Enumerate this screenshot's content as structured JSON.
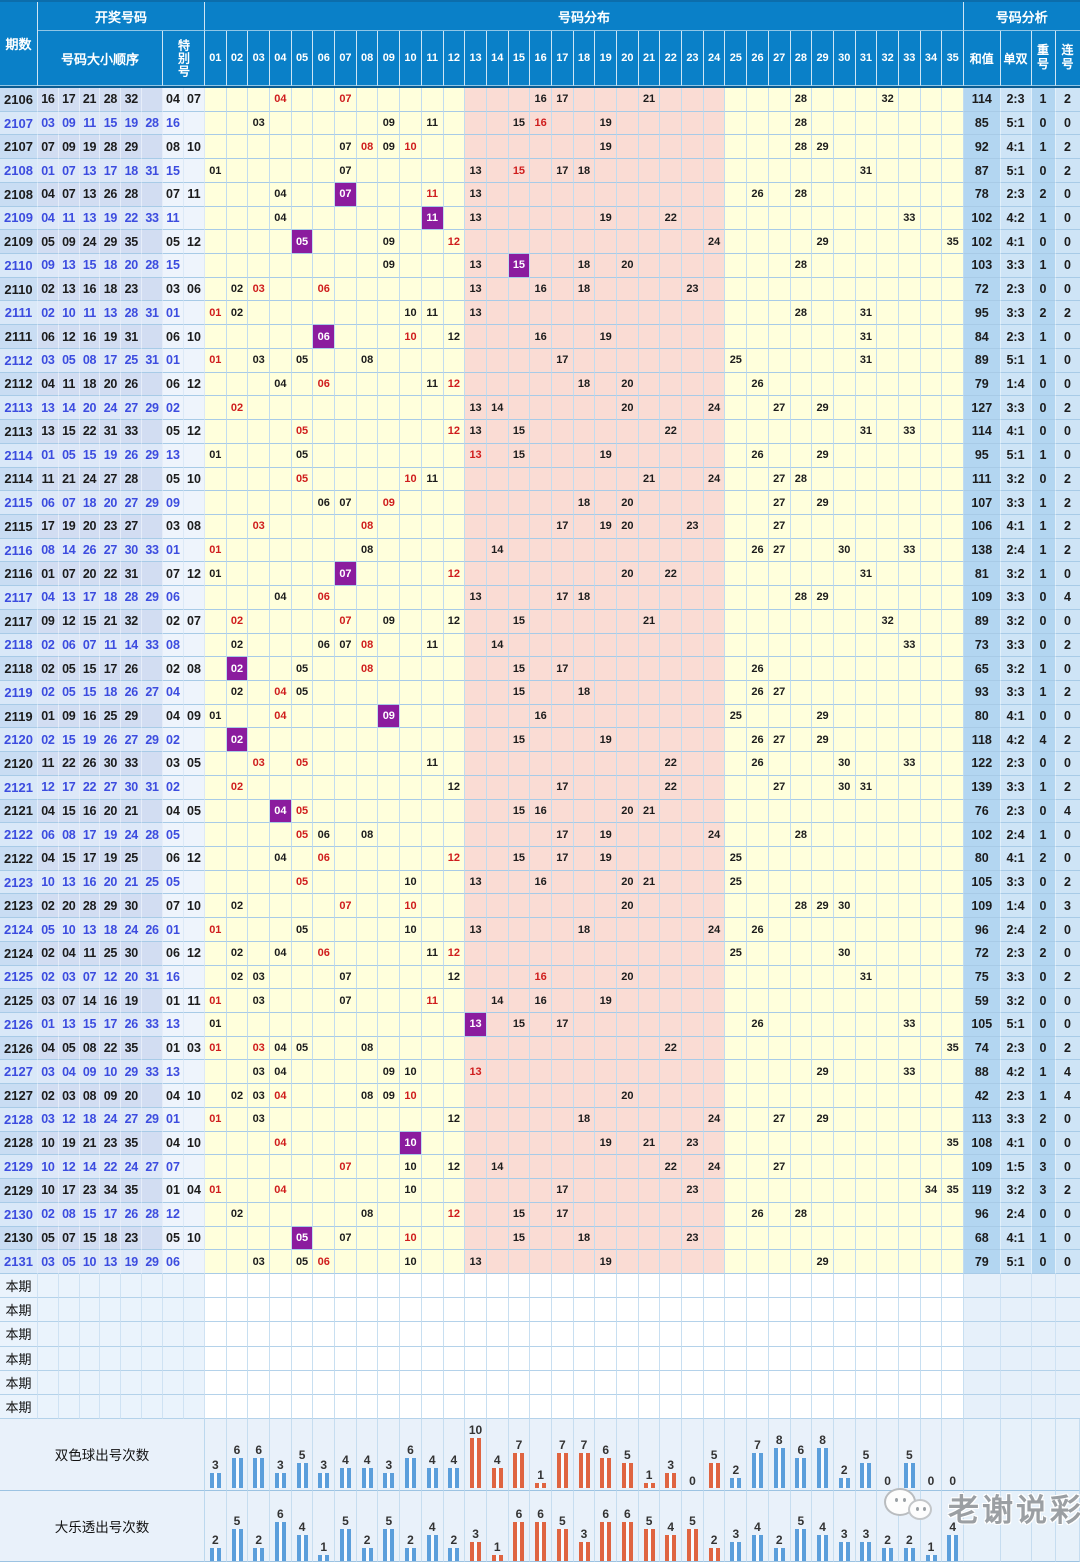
{
  "header": {
    "col_period": "期数",
    "col_draw": "开奖号码",
    "col_order": "号码大小顺序",
    "col_special": "特别号",
    "col_dist": "号码分布",
    "col_analysis": "号码分析",
    "col_sum": "和值",
    "col_oddeven": "单双",
    "col_repeat": "重号",
    "col_consec": "连号",
    "dist_columns": [
      "01",
      "02",
      "03",
      "04",
      "05",
      "06",
      "07",
      "08",
      "09",
      "10",
      "11",
      "12",
      "13",
      "14",
      "15",
      "16",
      "17",
      "18",
      "19",
      "20",
      "21",
      "22",
      "23",
      "24",
      "25",
      "26",
      "27",
      "28",
      "29",
      "30",
      "31",
      "32",
      "33",
      "34",
      "35"
    ]
  },
  "rows": [
    {
      "period": "2106",
      "lottery": "dlt",
      "balls": [
        "16",
        "17",
        "21",
        "28",
        "32"
      ],
      "specials": [
        "04",
        "07"
      ],
      "sum": "114",
      "odd_even": "2:3",
      "repeat": "1",
      "consec": "2"
    },
    {
      "period": "2107",
      "lottery": "ssq",
      "balls": [
        "03",
        "09",
        "11",
        "15",
        "19",
        "28"
      ],
      "specials": [
        "16"
      ],
      "sum": "85",
      "odd_even": "5:1",
      "repeat": "0",
      "consec": "0"
    },
    {
      "period": "2107",
      "lottery": "dlt",
      "balls": [
        "07",
        "09",
        "19",
        "28",
        "29"
      ],
      "specials": [
        "08",
        "10"
      ],
      "sum": "92",
      "odd_even": "4:1",
      "repeat": "1",
      "consec": "2"
    },
    {
      "period": "2108",
      "lottery": "ssq",
      "balls": [
        "01",
        "07",
        "13",
        "17",
        "18",
        "31"
      ],
      "specials": [
        "15"
      ],
      "sum": "87",
      "odd_even": "5:1",
      "repeat": "0",
      "consec": "2"
    },
    {
      "period": "2108",
      "lottery": "dlt",
      "balls": [
        "04",
        "07",
        "13",
        "26",
        "28"
      ],
      "specials": [
        "07",
        "11"
      ],
      "sum": "78",
      "odd_even": "2:3",
      "repeat": "2",
      "consec": "0"
    },
    {
      "period": "2109",
      "lottery": "ssq",
      "balls": [
        "04",
        "11",
        "13",
        "19",
        "22",
        "33"
      ],
      "specials": [
        "11"
      ],
      "sum": "102",
      "odd_even": "4:2",
      "repeat": "1",
      "consec": "0"
    },
    {
      "period": "2109",
      "lottery": "dlt",
      "balls": [
        "05",
        "09",
        "24",
        "29",
        "35"
      ],
      "specials": [
        "05",
        "12"
      ],
      "sum": "102",
      "odd_even": "4:1",
      "repeat": "0",
      "consec": "0"
    },
    {
      "period": "2110",
      "lottery": "ssq",
      "balls": [
        "09",
        "13",
        "15",
        "18",
        "20",
        "28"
      ],
      "specials": [
        "15"
      ],
      "sum": "103",
      "odd_even": "3:3",
      "repeat": "1",
      "consec": "0"
    },
    {
      "period": "2110",
      "lottery": "dlt",
      "balls": [
        "02",
        "13",
        "16",
        "18",
        "23"
      ],
      "specials": [
        "03",
        "06"
      ],
      "sum": "72",
      "odd_even": "2:3",
      "repeat": "0",
      "consec": "0"
    },
    {
      "period": "2111",
      "lottery": "ssq",
      "balls": [
        "02",
        "10",
        "11",
        "13",
        "28",
        "31"
      ],
      "specials": [
        "01"
      ],
      "sum": "95",
      "odd_even": "3:3",
      "repeat": "2",
      "consec": "2"
    },
    {
      "period": "2111",
      "lottery": "dlt",
      "balls": [
        "06",
        "12",
        "16",
        "19",
        "31"
      ],
      "specials": [
        "06",
        "10"
      ],
      "sum": "84",
      "odd_even": "2:3",
      "repeat": "1",
      "consec": "0"
    },
    {
      "period": "2112",
      "lottery": "ssq",
      "balls": [
        "03",
        "05",
        "08",
        "17",
        "25",
        "31"
      ],
      "specials": [
        "01"
      ],
      "sum": "89",
      "odd_even": "5:1",
      "repeat": "1",
      "consec": "0"
    },
    {
      "period": "2112",
      "lottery": "dlt",
      "balls": [
        "04",
        "11",
        "18",
        "20",
        "26"
      ],
      "specials": [
        "06",
        "12"
      ],
      "sum": "79",
      "odd_even": "1:4",
      "repeat": "0",
      "consec": "0"
    },
    {
      "period": "2113",
      "lottery": "ssq",
      "balls": [
        "13",
        "14",
        "20",
        "24",
        "27",
        "29"
      ],
      "specials": [
        "02"
      ],
      "sum": "127",
      "odd_even": "3:3",
      "repeat": "0",
      "consec": "2"
    },
    {
      "period": "2113",
      "lottery": "dlt",
      "balls": [
        "13",
        "15",
        "22",
        "31",
        "33"
      ],
      "specials": [
        "05",
        "12"
      ],
      "sum": "114",
      "odd_even": "4:1",
      "repeat": "0",
      "consec": "0"
    },
    {
      "period": "2114",
      "lottery": "ssq",
      "balls": [
        "01",
        "05",
        "15",
        "19",
        "26",
        "29"
      ],
      "specials": [
        "13"
      ],
      "sum": "95",
      "odd_even": "5:1",
      "repeat": "1",
      "consec": "0"
    },
    {
      "period": "2114",
      "lottery": "dlt",
      "balls": [
        "11",
        "21",
        "24",
        "27",
        "28"
      ],
      "specials": [
        "05",
        "10"
      ],
      "sum": "111",
      "odd_even": "3:2",
      "repeat": "0",
      "consec": "2"
    },
    {
      "period": "2115",
      "lottery": "ssq",
      "balls": [
        "06",
        "07",
        "18",
        "20",
        "27",
        "29"
      ],
      "specials": [
        "09"
      ],
      "sum": "107",
      "odd_even": "3:3",
      "repeat": "1",
      "consec": "2"
    },
    {
      "period": "2115",
      "lottery": "dlt",
      "balls": [
        "17",
        "19",
        "20",
        "23",
        "27"
      ],
      "specials": [
        "03",
        "08"
      ],
      "sum": "106",
      "odd_even": "4:1",
      "repeat": "1",
      "consec": "2"
    },
    {
      "period": "2116",
      "lottery": "ssq",
      "balls": [
        "08",
        "14",
        "26",
        "27",
        "30",
        "33"
      ],
      "specials": [
        "01"
      ],
      "sum": "138",
      "odd_even": "2:4",
      "repeat": "1",
      "consec": "2"
    },
    {
      "period": "2116",
      "lottery": "dlt",
      "balls": [
        "01",
        "07",
        "20",
        "22",
        "31"
      ],
      "specials": [
        "07",
        "12"
      ],
      "sum": "81",
      "odd_even": "3:2",
      "repeat": "1",
      "consec": "0"
    },
    {
      "period": "2117",
      "lottery": "ssq",
      "balls": [
        "04",
        "13",
        "17",
        "18",
        "28",
        "29"
      ],
      "specials": [
        "06"
      ],
      "sum": "109",
      "odd_even": "3:3",
      "repeat": "0",
      "consec": "4"
    },
    {
      "period": "2117",
      "lottery": "dlt",
      "balls": [
        "09",
        "12",
        "15",
        "21",
        "32"
      ],
      "specials": [
        "02",
        "07"
      ],
      "sum": "89",
      "odd_even": "3:2",
      "repeat": "0",
      "consec": "0"
    },
    {
      "period": "2118",
      "lottery": "ssq",
      "balls": [
        "02",
        "06",
        "07",
        "11",
        "14",
        "33"
      ],
      "specials": [
        "08"
      ],
      "sum": "73",
      "odd_even": "3:3",
      "repeat": "0",
      "consec": "2"
    },
    {
      "period": "2118",
      "lottery": "dlt",
      "balls": [
        "02",
        "05",
        "15",
        "17",
        "26"
      ],
      "specials": [
        "02",
        "08"
      ],
      "sum": "65",
      "odd_even": "3:2",
      "repeat": "1",
      "consec": "0"
    },
    {
      "period": "2119",
      "lottery": "ssq",
      "balls": [
        "02",
        "05",
        "15",
        "18",
        "26",
        "27"
      ],
      "specials": [
        "04"
      ],
      "sum": "93",
      "odd_even": "3:3",
      "repeat": "1",
      "consec": "2"
    },
    {
      "period": "2119",
      "lottery": "dlt",
      "balls": [
        "01",
        "09",
        "16",
        "25",
        "29"
      ],
      "specials": [
        "04",
        "09"
      ],
      "sum": "80",
      "odd_even": "4:1",
      "repeat": "0",
      "consec": "0"
    },
    {
      "period": "2120",
      "lottery": "ssq",
      "balls": [
        "02",
        "15",
        "19",
        "26",
        "27",
        "29"
      ],
      "specials": [
        "02"
      ],
      "sum": "118",
      "odd_even": "4:2",
      "repeat": "4",
      "consec": "2"
    },
    {
      "period": "2120",
      "lottery": "dlt",
      "balls": [
        "11",
        "22",
        "26",
        "30",
        "33"
      ],
      "specials": [
        "03",
        "05"
      ],
      "sum": "122",
      "odd_even": "2:3",
      "repeat": "0",
      "consec": "0"
    },
    {
      "period": "2121",
      "lottery": "ssq",
      "balls": [
        "12",
        "17",
        "22",
        "27",
        "30",
        "31"
      ],
      "specials": [
        "02"
      ],
      "sum": "139",
      "odd_even": "3:3",
      "repeat": "1",
      "consec": "2"
    },
    {
      "period": "2121",
      "lottery": "dlt",
      "balls": [
        "04",
        "15",
        "16",
        "20",
        "21"
      ],
      "specials": [
        "04",
        "05"
      ],
      "sum": "76",
      "odd_even": "2:3",
      "repeat": "0",
      "consec": "4"
    },
    {
      "period": "2122",
      "lottery": "ssq",
      "balls": [
        "06",
        "08",
        "17",
        "19",
        "24",
        "28"
      ],
      "specials": [
        "05"
      ],
      "sum": "102",
      "odd_even": "2:4",
      "repeat": "1",
      "consec": "0"
    },
    {
      "period": "2122",
      "lottery": "dlt",
      "balls": [
        "04",
        "15",
        "17",
        "19",
        "25"
      ],
      "specials": [
        "06",
        "12"
      ],
      "sum": "80",
      "odd_even": "4:1",
      "repeat": "2",
      "consec": "0"
    },
    {
      "period": "2123",
      "lottery": "ssq",
      "balls": [
        "10",
        "13",
        "16",
        "20",
        "21",
        "25"
      ],
      "specials": [
        "05"
      ],
      "sum": "105",
      "odd_even": "3:3",
      "repeat": "0",
      "consec": "2"
    },
    {
      "period": "2123",
      "lottery": "dlt",
      "balls": [
        "02",
        "20",
        "28",
        "29",
        "30"
      ],
      "specials": [
        "07",
        "10"
      ],
      "sum": "109",
      "odd_even": "1:4",
      "repeat": "0",
      "consec": "3"
    },
    {
      "period": "2124",
      "lottery": "ssq",
      "balls": [
        "05",
        "10",
        "13",
        "18",
        "24",
        "26"
      ],
      "specials": [
        "01"
      ],
      "sum": "96",
      "odd_even": "2:4",
      "repeat": "2",
      "consec": "0"
    },
    {
      "period": "2124",
      "lottery": "dlt",
      "balls": [
        "02",
        "04",
        "11",
        "25",
        "30"
      ],
      "specials": [
        "06",
        "12"
      ],
      "sum": "72",
      "odd_even": "2:3",
      "repeat": "2",
      "consec": "0"
    },
    {
      "period": "2125",
      "lottery": "ssq",
      "balls": [
        "02",
        "03",
        "07",
        "12",
        "20",
        "31"
      ],
      "specials": [
        "16"
      ],
      "sum": "75",
      "odd_even": "3:3",
      "repeat": "0",
      "consec": "2"
    },
    {
      "period": "2125",
      "lottery": "dlt",
      "balls": [
        "03",
        "07",
        "14",
        "16",
        "19"
      ],
      "specials": [
        "01",
        "11"
      ],
      "sum": "59",
      "odd_even": "3:2",
      "repeat": "0",
      "consec": "0"
    },
    {
      "period": "2126",
      "lottery": "ssq",
      "balls": [
        "01",
        "13",
        "15",
        "17",
        "26",
        "33"
      ],
      "specials": [
        "13"
      ],
      "sum": "105",
      "odd_even": "5:1",
      "repeat": "0",
      "consec": "0"
    },
    {
      "period": "2126",
      "lottery": "dlt",
      "balls": [
        "04",
        "05",
        "08",
        "22",
        "35"
      ],
      "specials": [
        "01",
        "03"
      ],
      "sum": "74",
      "odd_even": "2:3",
      "repeat": "0",
      "consec": "2"
    },
    {
      "period": "2127",
      "lottery": "ssq",
      "balls": [
        "03",
        "04",
        "09",
        "10",
        "29",
        "33"
      ],
      "specials": [
        "13"
      ],
      "sum": "88",
      "odd_even": "4:2",
      "repeat": "1",
      "consec": "4"
    },
    {
      "period": "2127",
      "lottery": "dlt",
      "balls": [
        "02",
        "03",
        "08",
        "09",
        "20"
      ],
      "specials": [
        "04",
        "10"
      ],
      "sum": "42",
      "odd_even": "2:3",
      "repeat": "1",
      "consec": "4"
    },
    {
      "period": "2128",
      "lottery": "ssq",
      "balls": [
        "03",
        "12",
        "18",
        "24",
        "27",
        "29"
      ],
      "specials": [
        "01"
      ],
      "sum": "113",
      "odd_even": "3:3",
      "repeat": "2",
      "consec": "0"
    },
    {
      "period": "2128",
      "lottery": "dlt",
      "balls": [
        "10",
        "19",
        "21",
        "23",
        "35"
      ],
      "specials": [
        "04",
        "10"
      ],
      "sum": "108",
      "odd_even": "4:1",
      "repeat": "0",
      "consec": "0"
    },
    {
      "period": "2129",
      "lottery": "ssq",
      "balls": [
        "10",
        "12",
        "14",
        "22",
        "24",
        "27"
      ],
      "specials": [
        "07"
      ],
      "sum": "109",
      "odd_even": "1:5",
      "repeat": "3",
      "consec": "0"
    },
    {
      "period": "2129",
      "lottery": "dlt",
      "balls": [
        "10",
        "17",
        "23",
        "34",
        "35"
      ],
      "specials": [
        "01",
        "04"
      ],
      "sum": "119",
      "odd_even": "3:2",
      "repeat": "3",
      "consec": "2"
    },
    {
      "period": "2130",
      "lottery": "ssq",
      "balls": [
        "02",
        "08",
        "15",
        "17",
        "26",
        "28"
      ],
      "specials": [
        "12"
      ],
      "sum": "96",
      "odd_even": "2:4",
      "repeat": "0",
      "consec": "0"
    },
    {
      "period": "2130",
      "lottery": "dlt",
      "balls": [
        "05",
        "07",
        "15",
        "18",
        "23"
      ],
      "specials": [
        "05",
        "10"
      ],
      "sum": "68",
      "odd_even": "4:1",
      "repeat": "1",
      "consec": "0"
    },
    {
      "period": "2131",
      "lottery": "ssq",
      "balls": [
        "03",
        "05",
        "10",
        "13",
        "19",
        "29"
      ],
      "specials": [
        "06"
      ],
      "sum": "79",
      "odd_even": "5:1",
      "repeat": "0",
      "consec": "0"
    }
  ],
  "pending": {
    "label": "本期",
    "count": 6
  },
  "chart_data": [
    {
      "type": "bar",
      "title": "双色球出号次数",
      "categories": [
        "01",
        "02",
        "03",
        "04",
        "05",
        "06",
        "07",
        "08",
        "09",
        "10",
        "11",
        "12",
        "13",
        "14",
        "15",
        "16",
        "17",
        "18",
        "19",
        "20",
        "21",
        "22",
        "23",
        "24",
        "25",
        "26",
        "27",
        "28",
        "29",
        "30",
        "31",
        "32",
        "33",
        "34",
        "35"
      ],
      "values": [
        3,
        6,
        6,
        3,
        5,
        3,
        4,
        4,
        3,
        6,
        4,
        4,
        10,
        4,
        7,
        1,
        7,
        7,
        6,
        5,
        1,
        3,
        0,
        5,
        2,
        7,
        8,
        6,
        8,
        2,
        5,
        0,
        5,
        0,
        0
      ],
      "ylim": [
        0,
        10
      ],
      "note": "bars for columns 13-24 are red, others blue; value labels above bars"
    },
    {
      "type": "bar",
      "title": "大乐透出号次数",
      "categories": [
        "01",
        "02",
        "03",
        "04",
        "05",
        "06",
        "07",
        "08",
        "09",
        "10",
        "11",
        "12",
        "13",
        "14",
        "15",
        "16",
        "17",
        "18",
        "19",
        "20",
        "21",
        "22",
        "23",
        "24",
        "25",
        "26",
        "27",
        "28",
        "29",
        "30",
        "31",
        "32",
        "33",
        "34",
        "35"
      ],
      "values": [
        2,
        5,
        2,
        6,
        4,
        1,
        5,
        2,
        5,
        2,
        4,
        2,
        3,
        1,
        6,
        6,
        5,
        3,
        6,
        6,
        5,
        4,
        5,
        2,
        3,
        4,
        2,
        5,
        4,
        3,
        3,
        2,
        2,
        1,
        4
      ],
      "ylim": [
        0,
        10
      ],
      "note": "bars for columns 13-24 are red, others blue; value labels above bars"
    }
  ],
  "watermark": {
    "text": "老谢说彩",
    "icon": "wechat-logo-icon"
  },
  "colors": {
    "header_bg": "#0a80c8",
    "row_yellow": "#ffffdc",
    "band_pink": "#fadcd4",
    "period_col": "#c9ddf3",
    "sum_col": "#b3d6f1",
    "purple_overlap": "#8b1c9e",
    "red_text": "#cf1d1d",
    "blue_text": "#3c4cdf",
    "bar_blue": "#5b9edb",
    "bar_red": "#df6441"
  }
}
